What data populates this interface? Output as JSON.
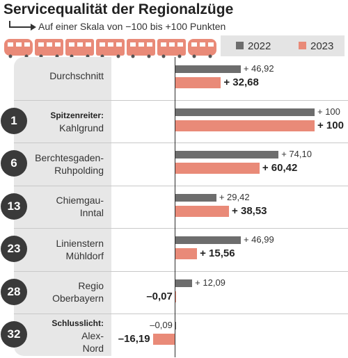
{
  "title": "Servicequalität der Regionalzüge",
  "subtitle": "Auf einer Skala von −100 bis +100 Punkten",
  "legend": {
    "a": "2022",
    "b": "2023"
  },
  "colors": {
    "y2022": "#6d6d6d",
    "y2023": "#e98a78"
  },
  "chart_data": {
    "type": "bar",
    "orientation": "horizontal",
    "title": "Servicequalität der Regionalzüge",
    "subtitle": "Auf einer Skala von −100 bis +100 Punkten",
    "xlim": [
      -100,
      100
    ],
    "categories": [
      {
        "rank": "",
        "prefix": "",
        "name": "Durchschnitt"
      },
      {
        "rank": "1",
        "prefix": "Spitzenreiter:",
        "name": "Kahlgrund"
      },
      {
        "rank": "6",
        "prefix": "",
        "name": "Berchtesgaden-Ruhpolding"
      },
      {
        "rank": "13",
        "prefix": "",
        "name": "Chiemgau-Inntal"
      },
      {
        "rank": "23",
        "prefix": "",
        "name": "Linienstern Mühldorf"
      },
      {
        "rank": "28",
        "prefix": "",
        "name": "Regio Oberbayern"
      },
      {
        "rank": "32",
        "prefix": "Schlusslicht:",
        "name": "Alex-Nord"
      }
    ],
    "series": [
      {
        "name": "2022",
        "values": [
          46.92,
          100,
          74.1,
          29.42,
          46.99,
          12.09,
          -0.09
        ],
        "labels": [
          "+ 46,92",
          "+ 100",
          "+ 74,10",
          "+ 29,42",
          "+ 46,99",
          "+ 12,09",
          "–0,09"
        ]
      },
      {
        "name": "2023",
        "values": [
          32.68,
          100,
          60.42,
          38.53,
          15.56,
          -0.07,
          -16.19
        ],
        "labels": [
          "+ 32,68",
          "+ 100",
          "+ 60,42",
          "+ 38,53",
          "+ 15,56",
          "–0,07",
          "–16,19"
        ]
      }
    ],
    "legend_position": "top-right"
  }
}
